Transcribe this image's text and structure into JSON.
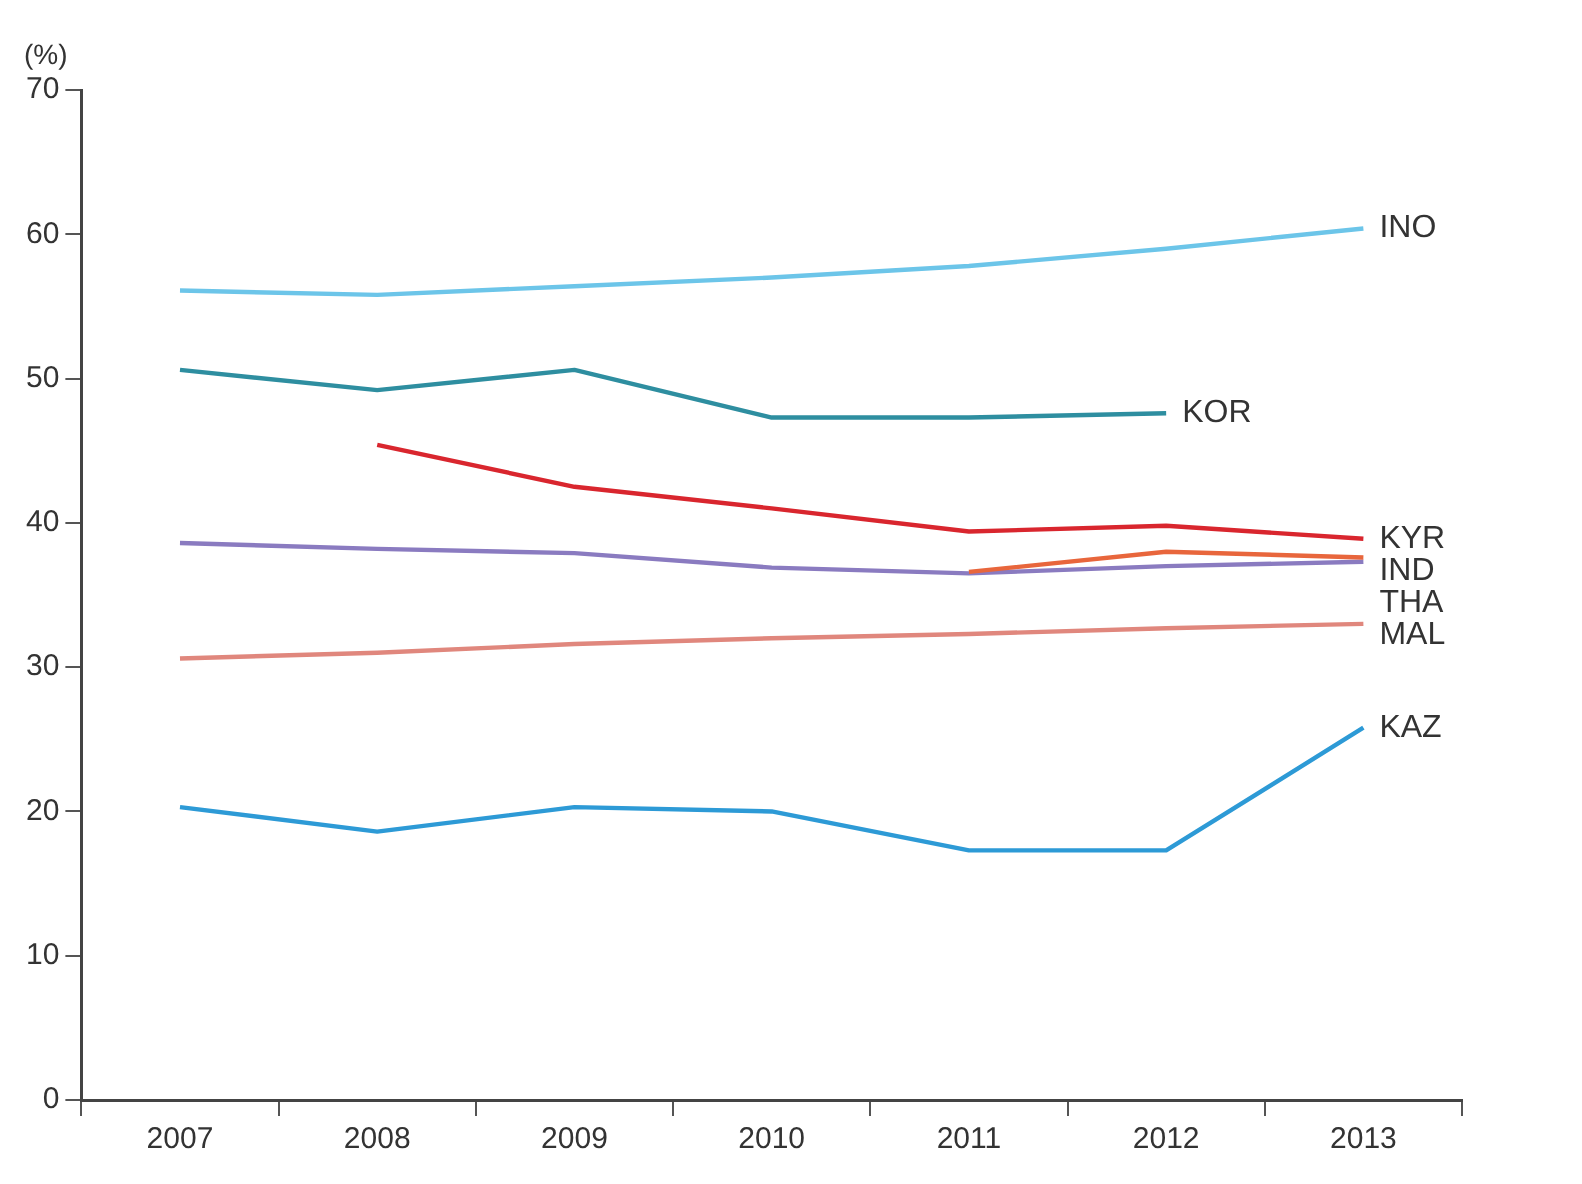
{
  "chart_data": {
    "type": "line",
    "ylabel": "(%)",
    "categories": [
      "2007",
      "2008",
      "2009",
      "2010",
      "2011",
      "2012",
      "2013"
    ],
    "ylim": [
      0,
      70
    ],
    "yticks": [
      0,
      10,
      20,
      30,
      40,
      50,
      60,
      70
    ],
    "grid": false,
    "legend": false,
    "marker": "none",
    "line_style": "solid",
    "series": [
      {
        "name": "INO",
        "color": "#6cc5e9",
        "values": [
          56.1,
          55.8,
          56.4,
          57.0,
          57.8,
          59.0,
          60.4
        ]
      },
      {
        "name": "KOR",
        "color": "#2e8ea0",
        "values": [
          50.6,
          49.2,
          50.6,
          47.3,
          47.3,
          47.6,
          null
        ]
      },
      {
        "name": "KYR",
        "color": "#d9262e",
        "values": [
          null,
          45.4,
          42.5,
          41.0,
          39.4,
          39.8,
          38.9
        ]
      },
      {
        "name": "IND",
        "color": "#e8663c",
        "values": [
          null,
          null,
          null,
          null,
          36.6,
          38.0,
          37.6
        ]
      },
      {
        "name": "THA",
        "color": "#8a7bc0",
        "values": [
          38.6,
          38.2,
          37.9,
          36.9,
          36.5,
          37.0,
          37.3
        ]
      },
      {
        "name": "MAL",
        "color": "#e0877d",
        "values": [
          30.6,
          31.0,
          31.6,
          32.0,
          32.3,
          32.7,
          33.0
        ]
      },
      {
        "name": "KAZ",
        "color": "#2d9ad6",
        "values": [
          20.3,
          18.6,
          20.3,
          20.0,
          17.3,
          17.3,
          25.8
        ]
      }
    ]
  }
}
